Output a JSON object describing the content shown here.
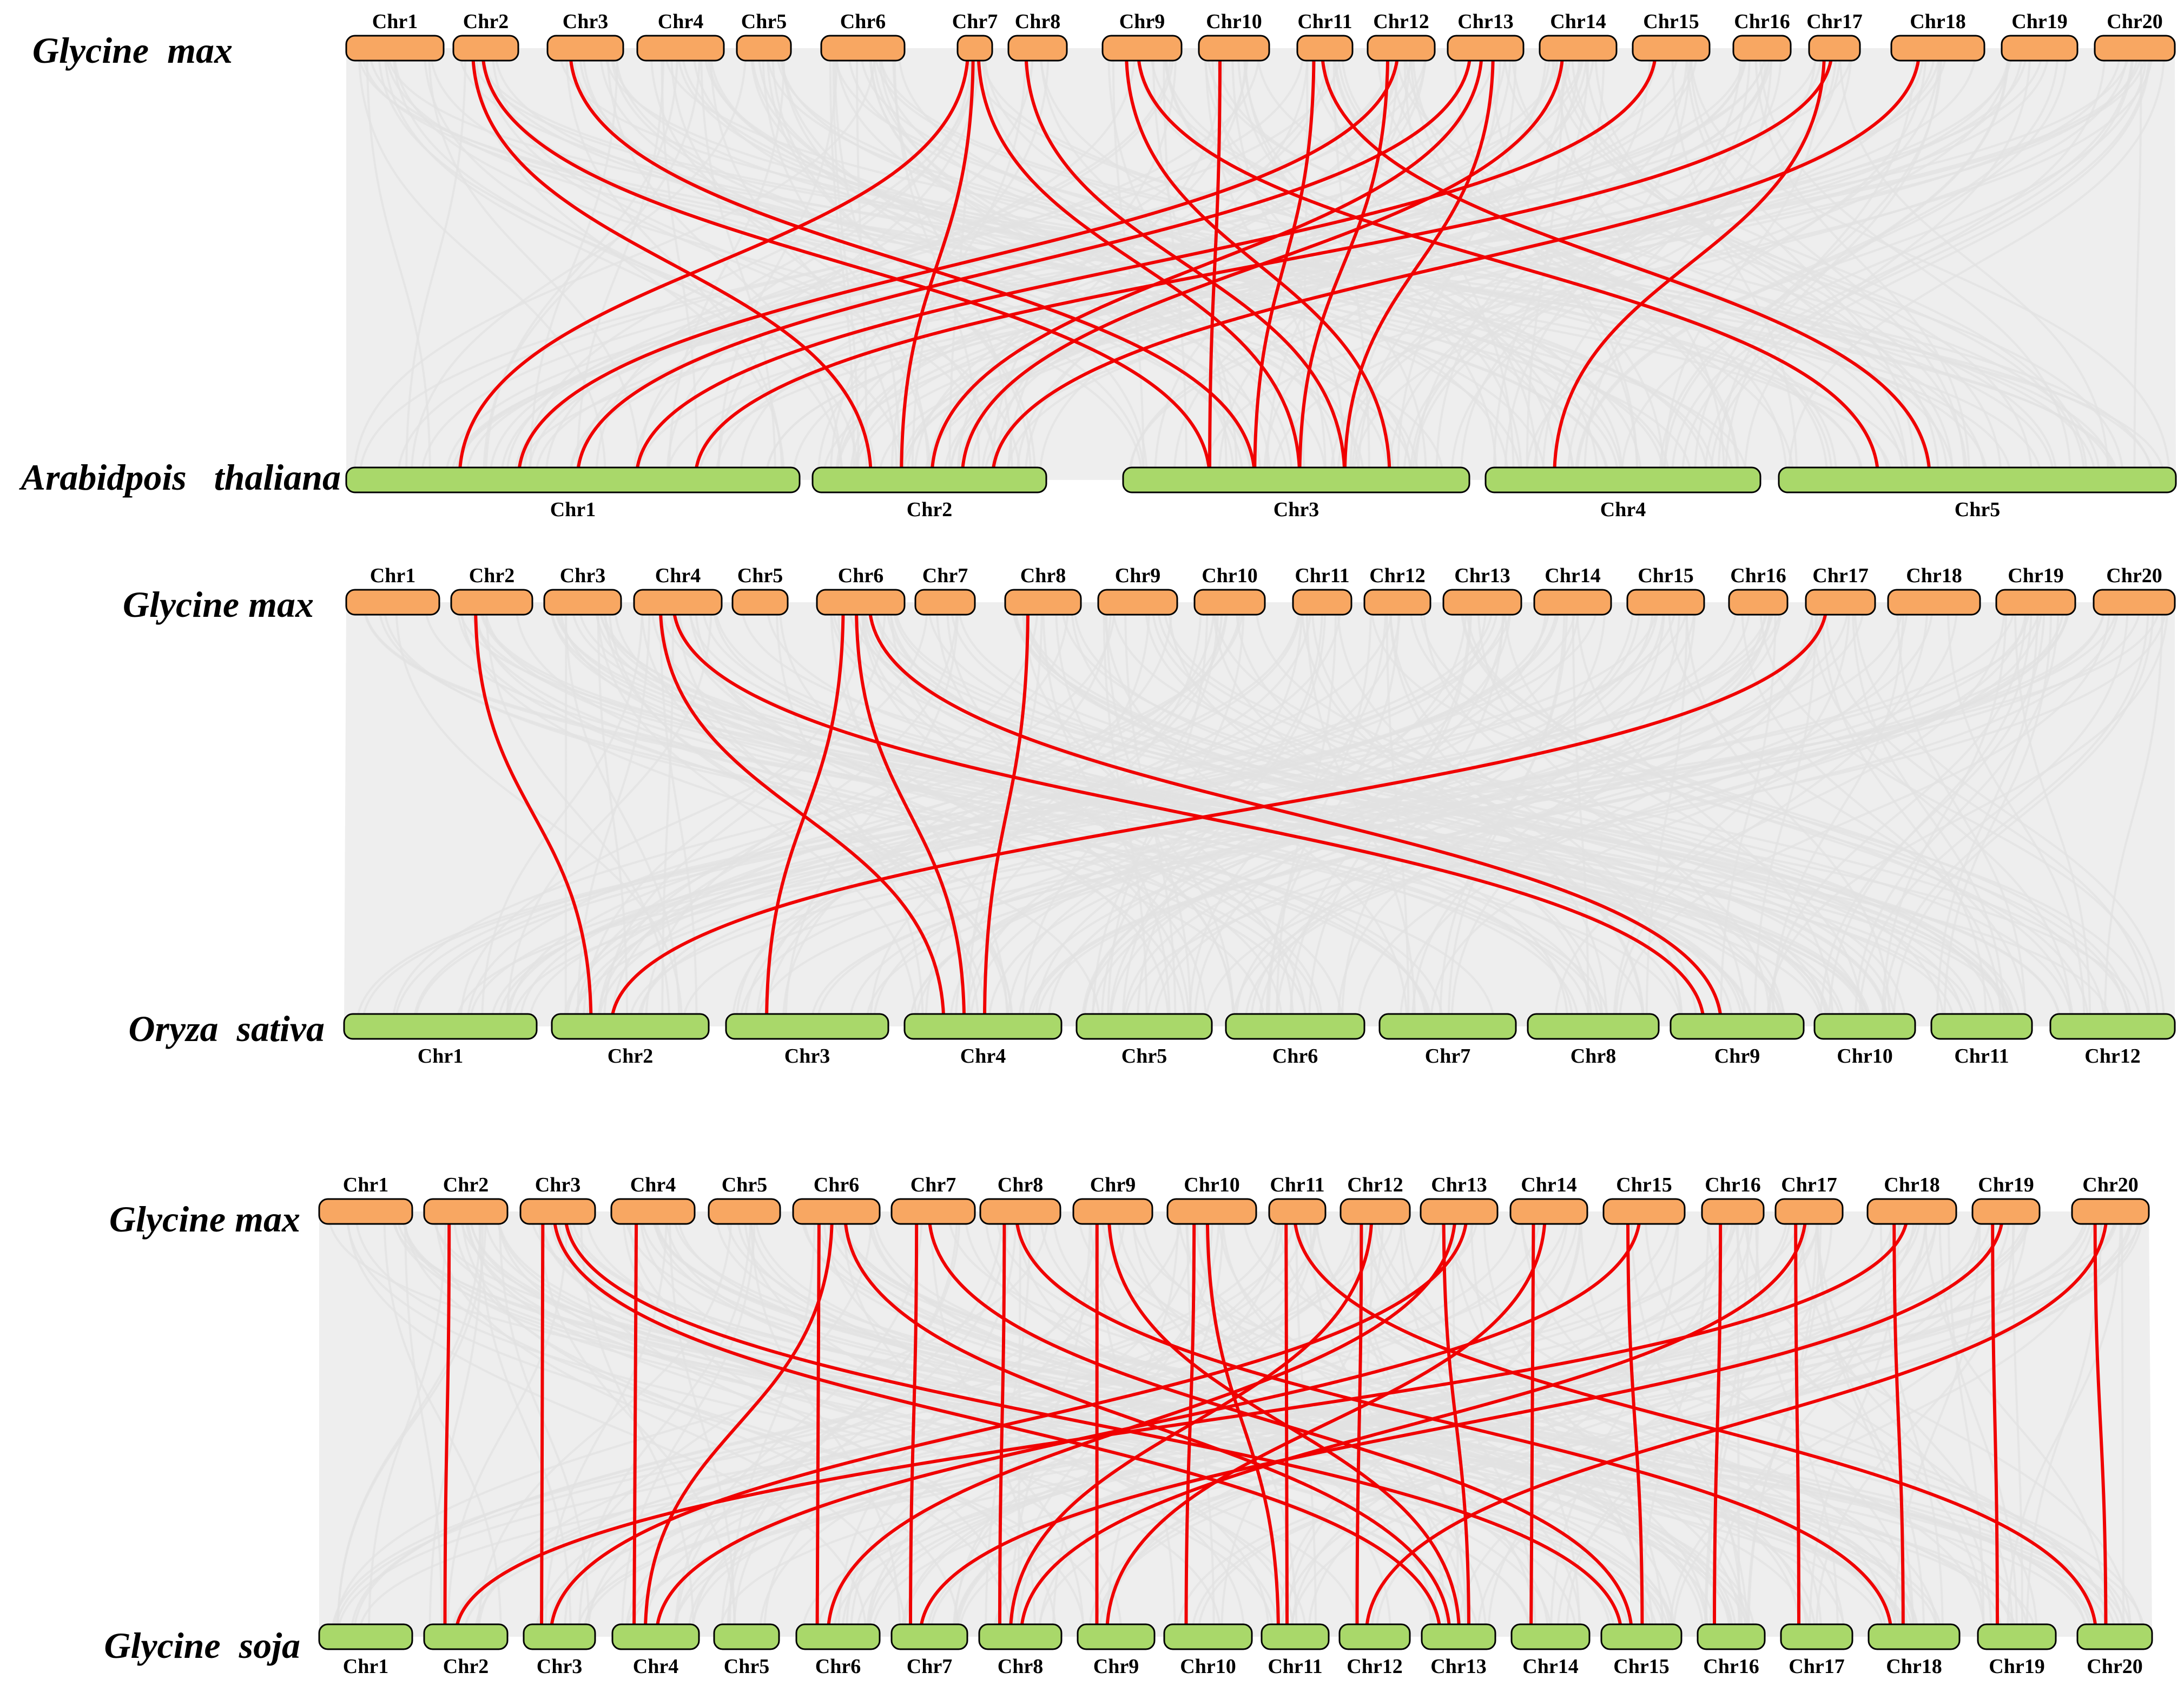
{
  "panels": [
    {
      "id": "panel-1",
      "top_species": "Glycine  max",
      "bottom_species": "Arabidpois   thaliana",
      "top_chromosomes": [
        "Chr1",
        "Chr2",
        "Chr3",
        "Chr4",
        "Chr5",
        "Chr6",
        "Chr7",
        "Chr8",
        "Chr9",
        "Chr10",
        "Chr11",
        "Chr12",
        "Chr13",
        "Chr14",
        "Chr15",
        "Chr16",
        "Chr17",
        "Chr18",
        "Chr19",
        "Chr20"
      ],
      "bottom_chromosomes": [
        "Chr1",
        "Chr2",
        "Chr3",
        "Chr4",
        "Chr5"
      ],
      "highlighted_links": [
        [
          "Chr2",
          "Chr2"
        ],
        [
          "Chr2",
          "Chr3"
        ],
        [
          "Chr3",
          "Chr3"
        ],
        [
          "Chr7",
          "Chr1"
        ],
        [
          "Chr7",
          "Chr2"
        ],
        [
          "Chr7",
          "Chr3"
        ],
        [
          "Chr8",
          "Chr3"
        ],
        [
          "Chr9",
          "Chr3"
        ],
        [
          "Chr9",
          "Chr5"
        ],
        [
          "Chr10",
          "Chr3"
        ],
        [
          "Chr11",
          "Chr3"
        ],
        [
          "Chr11",
          "Chr5"
        ],
        [
          "Chr12",
          "Chr3"
        ],
        [
          "Chr12",
          "Chr1"
        ],
        [
          "Chr13",
          "Chr1"
        ],
        [
          "Chr13",
          "Chr2"
        ],
        [
          "Chr13",
          "Chr3"
        ],
        [
          "Chr14",
          "Chr2"
        ],
        [
          "Chr15",
          "Chr1"
        ],
        [
          "Chr17",
          "Chr4"
        ],
        [
          "Chr17",
          "Chr1"
        ],
        [
          "Chr18",
          "Chr2"
        ]
      ]
    },
    {
      "id": "panel-2",
      "top_species": "Glycine max",
      "bottom_species": "Oryza  sativa",
      "top_chromosomes": [
        "Chr1",
        "Chr2",
        "Chr3",
        "Chr4",
        "Chr5",
        "Chr6",
        "Chr7",
        "Chr8",
        "Chr9",
        "Chr10",
        "Chr11",
        "Chr12",
        "Chr13",
        "Chr14",
        "Chr15",
        "Chr16",
        "Chr17",
        "Chr18",
        "Chr19",
        "Chr20"
      ],
      "bottom_chromosomes": [
        "Chr1",
        "Chr2",
        "Chr3",
        "Chr4",
        "Chr5",
        "Chr6",
        "Chr7",
        "Chr8",
        "Chr9",
        "Chr10",
        "Chr11",
        "Chr12"
      ],
      "highlighted_links": [
        [
          "Chr2",
          "Chr2"
        ],
        [
          "Chr4",
          "Chr4"
        ],
        [
          "Chr4",
          "Chr9"
        ],
        [
          "Chr6",
          "Chr3"
        ],
        [
          "Chr6",
          "Chr4"
        ],
        [
          "Chr6",
          "Chr9"
        ],
        [
          "Chr8",
          "Chr4"
        ],
        [
          "Chr17",
          "Chr2"
        ]
      ]
    },
    {
      "id": "panel-3",
      "top_species": "Glycine max",
      "bottom_species": "Glycine  soja",
      "top_chromosomes": [
        "Chr1",
        "Chr2",
        "Chr3",
        "Chr4",
        "Chr5",
        "Chr6",
        "Chr7",
        "Chr8",
        "Chr9",
        "Chr10",
        "Chr11",
        "Chr12",
        "Chr13",
        "Chr14",
        "Chr15",
        "Chr16",
        "Chr17",
        "Chr18",
        "Chr19",
        "Chr20"
      ],
      "bottom_chromosomes": [
        "Chr1",
        "Chr2",
        "Chr3",
        "Chr4",
        "Chr5",
        "Chr6",
        "Chr7",
        "Chr8",
        "Chr9",
        "Chr10",
        "Chr11",
        "Chr12",
        "Chr13",
        "Chr14",
        "Chr15",
        "Chr16",
        "Chr17",
        "Chr18",
        "Chr19",
        "Chr20"
      ],
      "highlighted_links": [
        [
          "Chr2",
          "Chr2"
        ],
        [
          "Chr3",
          "Chr3"
        ],
        [
          "Chr3",
          "Chr13"
        ],
        [
          "Chr3",
          "Chr15"
        ],
        [
          "Chr4",
          "Chr4"
        ],
        [
          "Chr6",
          "Chr6"
        ],
        [
          "Chr6",
          "Chr4"
        ],
        [
          "Chr6",
          "Chr13"
        ],
        [
          "Chr7",
          "Chr7"
        ],
        [
          "Chr7",
          "Chr15"
        ],
        [
          "Chr8",
          "Chr8"
        ],
        [
          "Chr8",
          "Chr18"
        ],
        [
          "Chr9",
          "Chr9"
        ],
        [
          "Chr9",
          "Chr13"
        ],
        [
          "Chr10",
          "Chr10"
        ],
        [
          "Chr10",
          "Chr11"
        ],
        [
          "Chr11",
          "Chr11"
        ],
        [
          "Chr11",
          "Chr20"
        ],
        [
          "Chr12",
          "Chr12"
        ],
        [
          "Chr12",
          "Chr8"
        ],
        [
          "Chr13",
          "Chr13"
        ],
        [
          "Chr13",
          "Chr6"
        ],
        [
          "Chr13",
          "Chr3"
        ],
        [
          "Chr14",
          "Chr14"
        ],
        [
          "Chr14",
          "Chr9"
        ],
        [
          "Chr15",
          "Chr15"
        ],
        [
          "Chr15",
          "Chr4"
        ],
        [
          "Chr16",
          "Chr16"
        ],
        [
          "Chr17",
          "Chr17"
        ],
        [
          "Chr17",
          "Chr8"
        ],
        [
          "Chr18",
          "Chr18"
        ],
        [
          "Chr18",
          "Chr2"
        ],
        [
          "Chr19",
          "Chr19"
        ],
        [
          "Chr19",
          "Chr7"
        ],
        [
          "Chr20",
          "Chr20"
        ],
        [
          "Chr20",
          "Chr12"
        ]
      ]
    }
  ],
  "colors": {
    "top_chromosome": "#f8a762",
    "bottom_chromosome": "#a9d86a",
    "highlight_link": "#f00000",
    "background_link": "#e1e1e1",
    "panel_background": "#eeeeee"
  }
}
